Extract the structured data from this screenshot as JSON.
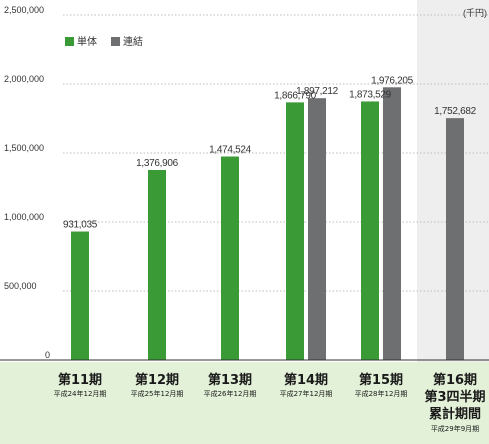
{
  "chart_data": {
    "type": "bar",
    "unit_label": "(千円)",
    "ylim": [
      0,
      2500000
    ],
    "yticks": [
      {
        "value": 0,
        "label": "0"
      },
      {
        "value": 500000,
        "label": "500,000"
      },
      {
        "value": 1000000,
        "label": "1,000,000"
      },
      {
        "value": 1500000,
        "label": "1,500,000"
      },
      {
        "value": 2000000,
        "label": "2,000,000"
      },
      {
        "value": 2500000,
        "label": "2,500,000"
      }
    ],
    "grid": true,
    "legend_position": "top-left",
    "series": [
      {
        "name": "単体",
        "color": "#3a9a35",
        "values": [
          931035,
          1376906,
          1474524,
          1866790,
          1873529,
          null
        ]
      },
      {
        "name": "連結",
        "color": "#6d6f71",
        "values": [
          null,
          null,
          null,
          1897212,
          1976205,
          1752682
        ]
      }
    ],
    "data_labels": [
      [
        "931,035",
        "1,376,906",
        "1,474,524",
        "1,866,790",
        "1,873,529",
        ""
      ],
      [
        "",
        "",
        "",
        "1,897,212",
        "1,976,205",
        "1,752,682"
      ]
    ],
    "categories": [
      {
        "main": "第11期",
        "sub": [
          "平成24年12月期"
        ]
      },
      {
        "main": "第12期",
        "sub": [
          "平成25年12月期"
        ]
      },
      {
        "main": "第13期",
        "sub": [
          "平成26年12月期"
        ]
      },
      {
        "main": "第14期",
        "sub": [
          "平成27年12月期"
        ]
      },
      {
        "main": "第15期",
        "sub": [
          "平成28年12月期"
        ]
      },
      {
        "main": "第16期",
        "sub": [
          "第3四半期",
          "累計期間",
          "平成29年9月期"
        ]
      }
    ],
    "highlighted_category": 5,
    "colors": {
      "category_band": "#e3f1d8",
      "highlight_bg": "#eeeeee",
      "axis": "#333333",
      "grid": "#bdbdbd"
    }
  }
}
